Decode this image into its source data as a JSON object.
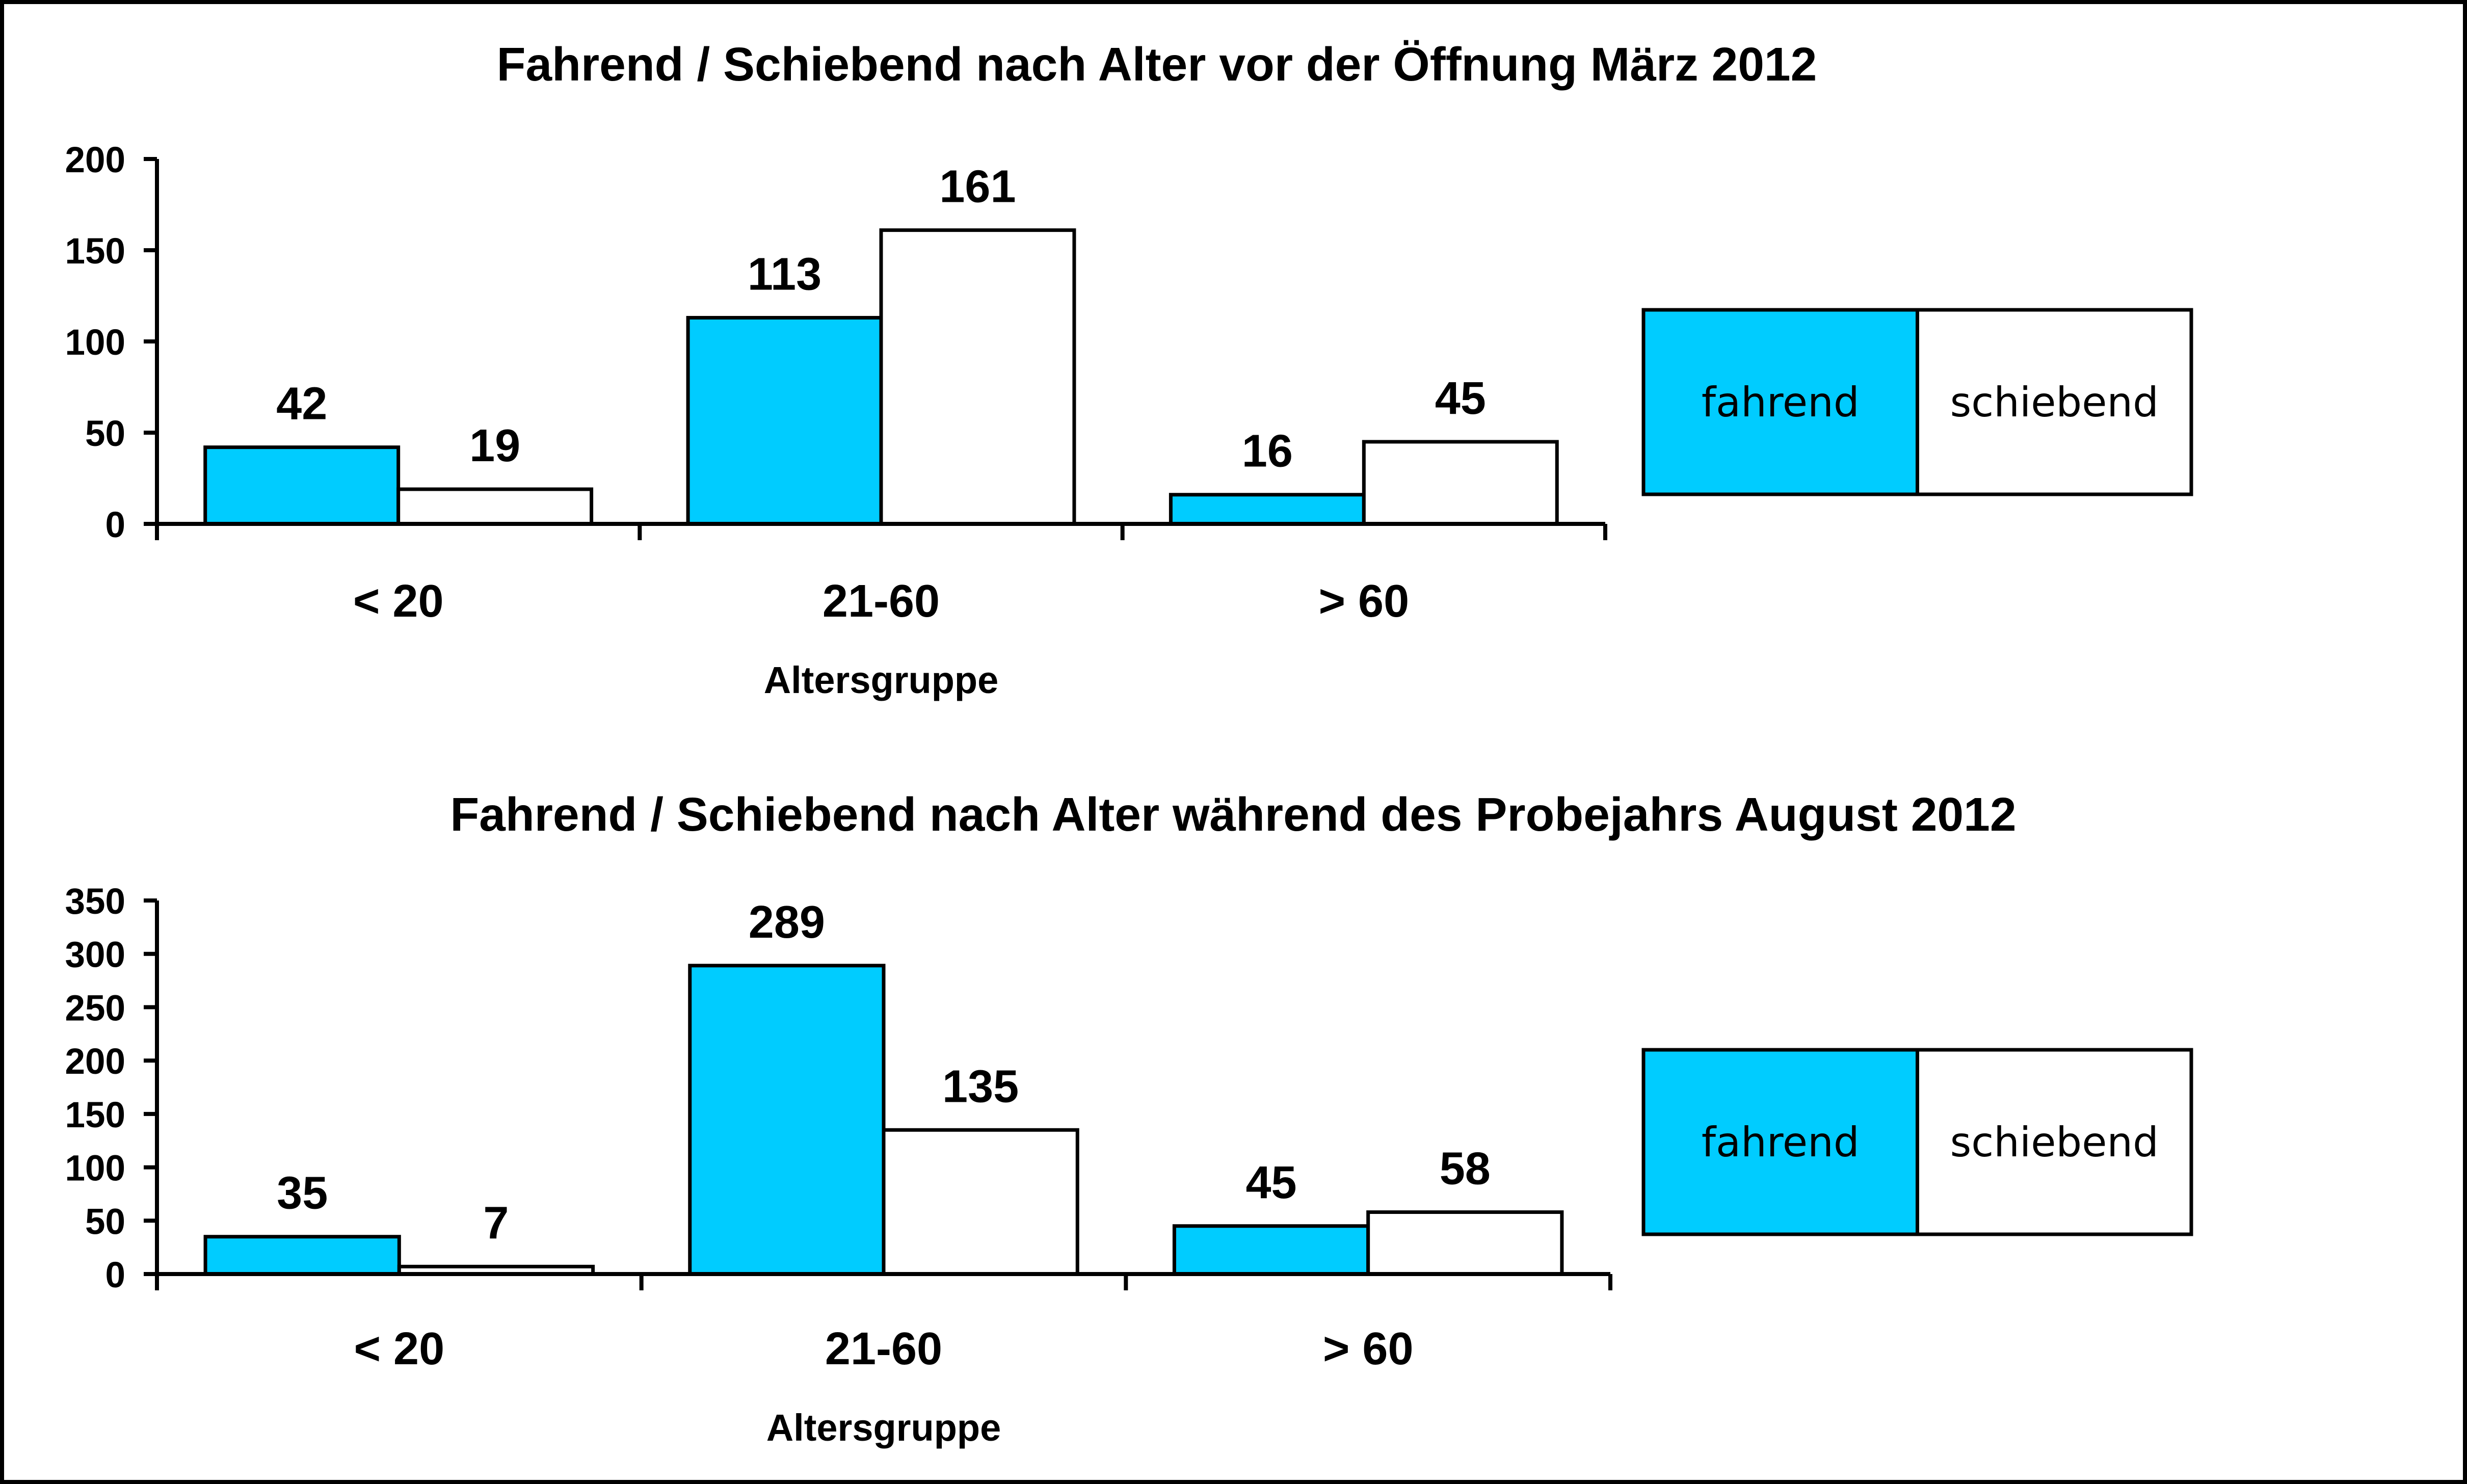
{
  "colors": {
    "fahrend": "#00CCFF",
    "schiebend": "#FFFFFF",
    "axis": "#000000",
    "background": "#FFFFFF"
  },
  "chart_data": [
    {
      "type": "bar",
      "title": "Fahrend / Schiebend nach Alter vor der Öffnung März 2012",
      "xlabel": "Altersgruppe",
      "ylabel": "",
      "categories": [
        "< 20",
        "21-60",
        "> 60"
      ],
      "series": [
        {
          "name": "fahrend",
          "values": [
            42,
            113,
            16
          ]
        },
        {
          "name": "schiebend",
          "values": [
            19,
            161,
            45
          ]
        }
      ],
      "ylim": [
        0,
        200
      ],
      "yticks": [
        0,
        50,
        100,
        150,
        200
      ],
      "ytick_labels": [
        "0",
        "50",
        "100",
        "150",
        "200"
      ],
      "data_labels": [
        [
          "42",
          "113",
          "16"
        ],
        [
          "19",
          "161",
          "45"
        ]
      ],
      "legend_labels": [
        "fahrend",
        "schiebend"
      ],
      "legend_position": "right",
      "grid": false
    },
    {
      "type": "bar",
      "title": "Fahrend / Schiebend nach Alter  während des Probejahrs August 2012",
      "xlabel": "Altersgruppe",
      "ylabel": "",
      "categories": [
        "< 20",
        "21-60",
        "> 60"
      ],
      "series": [
        {
          "name": "fahrend",
          "values": [
            35,
            289,
            45
          ]
        },
        {
          "name": "schiebend",
          "values": [
            7,
            135,
            58
          ]
        }
      ],
      "ylim": [
        0,
        350
      ],
      "yticks": [
        0,
        50,
        100,
        150,
        200,
        250,
        300,
        350
      ],
      "ytick_labels": [
        "0",
        "50",
        "100",
        "150",
        "200",
        "250",
        "300",
        "350"
      ],
      "data_labels": [
        [
          "35",
          "289",
          "45"
        ],
        [
          "7",
          "135",
          "58"
        ]
      ],
      "legend_labels": [
        "fahrend",
        "schiebend"
      ],
      "legend_position": "right",
      "grid": false
    }
  ]
}
